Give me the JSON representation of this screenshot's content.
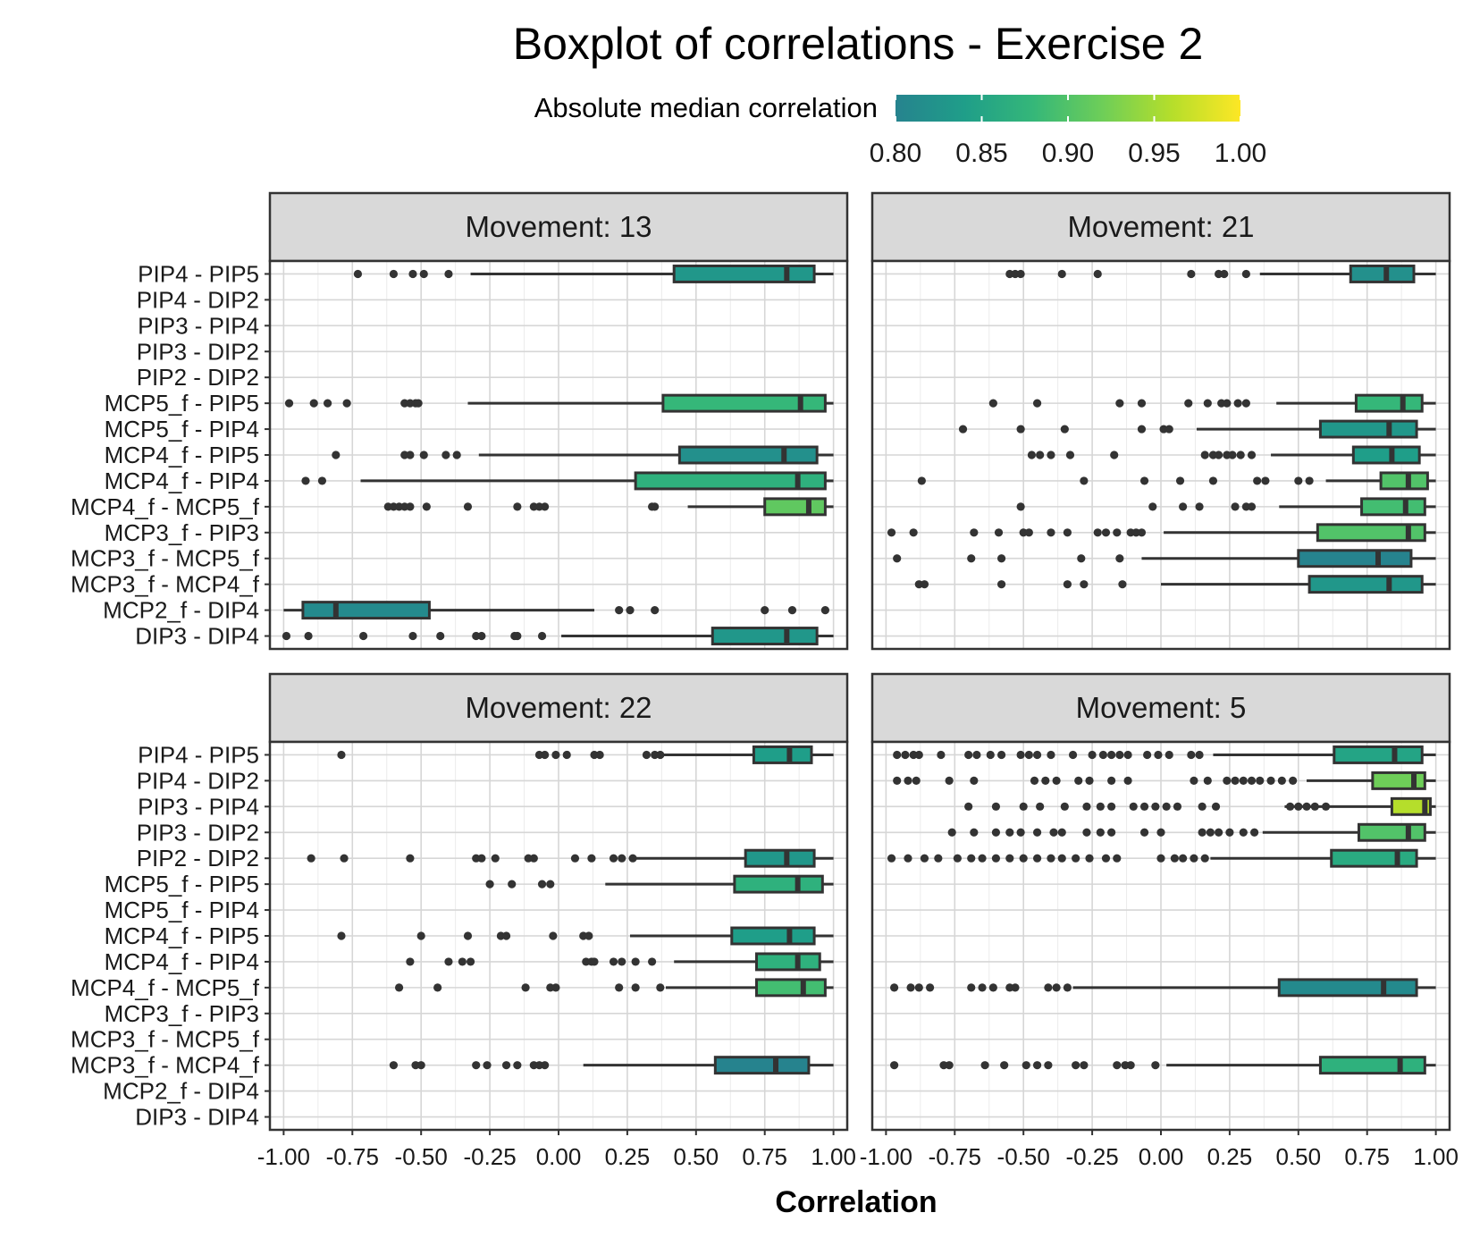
{
  "chart_data": {
    "type": "boxplot",
    "title": "Boxplot of correlations - Exercise 2",
    "xlabel": "Correlation",
    "ylabel": "",
    "xlim": [
      -1.05,
      1.05
    ],
    "x_ticks": [
      "-1.00",
      "-0.75",
      "-0.50",
      "-0.25",
      "0.00",
      "0.25",
      "0.50",
      "0.75",
      "1.00"
    ],
    "grid": true,
    "legend": {
      "title": "Absolute median correlation",
      "position": "top",
      "range": [
        0.8,
        1.0
      ],
      "ticks": [
        "0.80",
        "0.85",
        "0.90",
        "0.95",
        "1.00"
      ],
      "colors": [
        "#26838e",
        "#1f9e89",
        "#35b779",
        "#6ece58",
        "#b5de2b",
        "#fde725"
      ]
    },
    "categories": [
      "PIP4 - PIP5",
      "PIP4 - DIP2",
      "PIP3 - PIP4",
      "PIP3 - DIP2",
      "PIP2 - DIP2",
      "MCP5_f - PIP5",
      "MCP5_f - PIP4",
      "MCP4_f - PIP5",
      "MCP4_f - PIP4",
      "MCP4_f - MCP5_f",
      "MCP3_f - PIP3",
      "MCP3_f - MCP5_f",
      "MCP3_f - MCP4_f",
      "MCP2_f - DIP4",
      "DIP3 - DIP4"
    ],
    "panels": [
      {
        "label": "Movement: 13",
        "boxes": [
          {
            "category": "PIP4 - PIP5",
            "lower_whisker": -0.32,
            "q1": 0.42,
            "median": 0.83,
            "q3": 0.93,
            "upper_whisker": 1.0,
            "outliers": [
              -0.73,
              -0.6,
              -0.53,
              -0.49,
              -0.4
            ]
          },
          {
            "category": "MCP5_f - PIP5",
            "lower_whisker": -0.33,
            "q1": 0.38,
            "median": 0.88,
            "q3": 0.97,
            "upper_whisker": 1.0,
            "outliers": [
              -0.98,
              -0.89,
              -0.84,
              -0.77,
              -0.56,
              -0.54,
              -0.52,
              -0.51
            ]
          },
          {
            "category": "MCP4_f - PIP5",
            "lower_whisker": -0.29,
            "q1": 0.44,
            "median": 0.82,
            "q3": 0.94,
            "upper_whisker": 1.0,
            "outliers": [
              -0.81,
              -0.56,
              -0.54,
              -0.49,
              -0.41,
              -0.37
            ]
          },
          {
            "category": "MCP4_f - PIP4",
            "lower_whisker": -0.72,
            "q1": 0.28,
            "median": 0.87,
            "q3": 0.97,
            "upper_whisker": 1.0,
            "outliers": [
              -0.92,
              -0.86
            ]
          },
          {
            "category": "MCP4_f - MCP5_f",
            "lower_whisker": 0.47,
            "q1": 0.75,
            "median": 0.91,
            "q3": 0.97,
            "upper_whisker": 1.0,
            "outliers": [
              -0.62,
              -0.6,
              -0.58,
              -0.56,
              -0.54,
              -0.48,
              -0.33,
              -0.15,
              -0.09,
              -0.07,
              -0.05,
              0.34,
              0.35
            ]
          },
          {
            "category": "MCP2_f - DIP4",
            "lower_whisker": -1.0,
            "q1": -0.93,
            "median": -0.81,
            "q3": -0.47,
            "upper_whisker": 0.13,
            "outliers": [
              0.22,
              0.26,
              0.35,
              0.75,
              0.85,
              0.97
            ]
          },
          {
            "category": "DIP3 - DIP4",
            "lower_whisker": 0.01,
            "q1": 0.56,
            "median": 0.83,
            "q3": 0.94,
            "upper_whisker": 1.0,
            "outliers": [
              -0.99,
              -0.91,
              -0.71,
              -0.53,
              -0.43,
              -0.3,
              -0.28,
              -0.16,
              -0.15,
              -0.06
            ]
          }
        ]
      },
      {
        "label": "Movement: 21",
        "boxes": [
          {
            "category": "PIP4 - PIP5",
            "lower_whisker": 0.36,
            "q1": 0.69,
            "median": 0.82,
            "q3": 0.92,
            "upper_whisker": 1.0,
            "outliers": [
              -0.55,
              -0.53,
              -0.51,
              -0.36,
              -0.23,
              0.11,
              0.21,
              0.23,
              0.31
            ]
          },
          {
            "category": "MCP5_f - PIP5",
            "lower_whisker": 0.42,
            "q1": 0.71,
            "median": 0.88,
            "q3": 0.95,
            "upper_whisker": 1.0,
            "outliers": [
              -0.61,
              -0.45,
              -0.15,
              -0.07,
              0.1,
              0.17,
              0.22,
              0.24,
              0.28,
              0.31
            ]
          },
          {
            "category": "MCP5_f - PIP4",
            "lower_whisker": 0.13,
            "q1": 0.58,
            "median": 0.83,
            "q3": 0.93,
            "upper_whisker": 1.0,
            "outliers": [
              -0.72,
              -0.51,
              -0.35,
              -0.07,
              0.01,
              0.03
            ]
          },
          {
            "category": "MCP4_f - PIP5",
            "lower_whisker": 0.4,
            "q1": 0.7,
            "median": 0.84,
            "q3": 0.94,
            "upper_whisker": 1.0,
            "outliers": [
              -0.47,
              -0.44,
              -0.4,
              -0.33,
              -0.17,
              0.16,
              0.19,
              0.21,
              0.24,
              0.26,
              0.29,
              0.33
            ]
          },
          {
            "category": "MCP4_f - PIP4",
            "lower_whisker": 0.6,
            "q1": 0.8,
            "median": 0.9,
            "q3": 0.97,
            "upper_whisker": 1.0,
            "outliers": [
              -0.87,
              -0.28,
              -0.06,
              0.07,
              0.19,
              0.35,
              0.38,
              0.5,
              0.54
            ]
          },
          {
            "category": "MCP4_f - MCP5_f",
            "lower_whisker": 0.43,
            "q1": 0.73,
            "median": 0.89,
            "q3": 0.96,
            "upper_whisker": 1.0,
            "outliers": [
              -0.51,
              -0.03,
              0.08,
              0.14,
              0.27,
              0.31,
              0.33
            ]
          },
          {
            "category": "MCP3_f - PIP3",
            "lower_whisker": 0.01,
            "q1": 0.57,
            "median": 0.9,
            "q3": 0.96,
            "upper_whisker": 1.0,
            "outliers": [
              -0.98,
              -0.9,
              -0.68,
              -0.59,
              -0.5,
              -0.48,
              -0.4,
              -0.34,
              -0.23,
              -0.2,
              -0.16,
              -0.11,
              -0.09,
              -0.07
            ]
          },
          {
            "category": "MCP3_f - MCP5_f",
            "lower_whisker": -0.07,
            "q1": 0.5,
            "median": 0.79,
            "q3": 0.91,
            "upper_whisker": 1.0,
            "outliers": [
              -0.96,
              -0.69,
              -0.58,
              -0.29,
              -0.15
            ]
          },
          {
            "category": "MCP3_f - MCP4_f",
            "lower_whisker": 0.0,
            "q1": 0.54,
            "median": 0.83,
            "q3": 0.95,
            "upper_whisker": 1.0,
            "outliers": [
              -0.88,
              -0.86,
              -0.58,
              -0.34,
              -0.28,
              -0.14
            ]
          }
        ]
      },
      {
        "label": "Movement: 22",
        "boxes": [
          {
            "category": "PIP4 - PIP5",
            "lower_whisker": 0.38,
            "q1": 0.71,
            "median": 0.84,
            "q3": 0.92,
            "upper_whisker": 1.0,
            "outliers": [
              -0.79,
              -0.07,
              -0.05,
              -0.01,
              0.03,
              0.13,
              0.15,
              0.32,
              0.35,
              0.37
            ]
          },
          {
            "category": "PIP2 - DIP2",
            "lower_whisker": 0.28,
            "q1": 0.68,
            "median": 0.83,
            "q3": 0.93,
            "upper_whisker": 1.0,
            "outliers": [
              -0.9,
              -0.78,
              -0.54,
              -0.3,
              -0.28,
              -0.23,
              -0.11,
              -0.09,
              0.06,
              0.12,
              0.2,
              0.23,
              0.27
            ]
          },
          {
            "category": "MCP5_f - PIP5",
            "lower_whisker": 0.17,
            "q1": 0.64,
            "median": 0.87,
            "q3": 0.96,
            "upper_whisker": 1.0,
            "outliers": [
              -0.25,
              -0.17,
              -0.06,
              -0.03
            ]
          },
          {
            "category": "MCP4_f - PIP5",
            "lower_whisker": 0.26,
            "q1": 0.63,
            "median": 0.84,
            "q3": 0.93,
            "upper_whisker": 1.0,
            "outliers": [
              -0.79,
              -0.5,
              -0.33,
              -0.21,
              -0.19,
              -0.02,
              0.09,
              0.11
            ]
          },
          {
            "category": "MCP4_f - PIP4",
            "lower_whisker": 0.42,
            "q1": 0.72,
            "median": 0.87,
            "q3": 0.95,
            "upper_whisker": 1.0,
            "outliers": [
              -0.54,
              -0.4,
              -0.35,
              -0.32,
              0.1,
              0.12,
              0.13,
              0.2,
              0.23,
              0.28,
              0.34
            ]
          },
          {
            "category": "MCP4_f - MCP5_f",
            "lower_whisker": 0.39,
            "q1": 0.72,
            "median": 0.89,
            "q3": 0.97,
            "upper_whisker": 1.0,
            "outliers": [
              -0.58,
              -0.44,
              -0.12,
              -0.03,
              -0.01,
              0.22,
              0.28,
              0.37
            ]
          },
          {
            "category": "MCP3_f - MCP4_f",
            "lower_whisker": 0.09,
            "q1": 0.57,
            "median": 0.79,
            "q3": 0.91,
            "upper_whisker": 1.0,
            "outliers": [
              -0.6,
              -0.52,
              -0.5,
              -0.3,
              -0.26,
              -0.19,
              -0.15,
              -0.09,
              -0.07,
              -0.05
            ]
          }
        ]
      },
      {
        "label": "Movement: 5",
        "boxes": [
          {
            "category": "PIP4 - PIP5",
            "lower_whisker": 0.19,
            "q1": 0.63,
            "median": 0.85,
            "q3": 0.95,
            "upper_whisker": 1.0,
            "outliers": [
              -0.96,
              -0.93,
              -0.9,
              -0.88,
              -0.8,
              -0.7,
              -0.67,
              -0.62,
              -0.58,
              -0.51,
              -0.48,
              -0.45,
              -0.4,
              -0.32,
              -0.25,
              -0.21,
              -0.18,
              -0.15,
              -0.12,
              -0.05,
              -0.01,
              0.03,
              0.11,
              0.14
            ]
          },
          {
            "category": "PIP4 - DIP2",
            "lower_whisker": 0.53,
            "q1": 0.77,
            "median": 0.92,
            "q3": 0.96,
            "upper_whisker": 1.0,
            "outliers": [
              -0.96,
              -0.92,
              -0.89,
              -0.77,
              -0.68,
              -0.46,
              -0.42,
              -0.38,
              -0.3,
              -0.26,
              -0.18,
              -0.12,
              0.12,
              0.17,
              0.24,
              0.27,
              0.3,
              0.33,
              0.36,
              0.4,
              0.44,
              0.48
            ]
          },
          {
            "category": "PIP3 - PIP4",
            "lower_whisker": 0.45,
            "q1": 0.84,
            "median": 0.96,
            "q3": 0.98,
            "upper_whisker": 1.0,
            "outliers": [
              -0.7,
              -0.6,
              -0.5,
              -0.44,
              -0.35,
              -0.27,
              -0.22,
              -0.18,
              -0.1,
              -0.06,
              -0.02,
              0.02,
              0.06,
              0.15,
              0.2,
              0.47,
              0.5,
              0.53,
              0.56,
              0.6
            ]
          },
          {
            "category": "PIP3 - DIP2",
            "lower_whisker": 0.37,
            "q1": 0.72,
            "median": 0.9,
            "q3": 0.96,
            "upper_whisker": 1.0,
            "outliers": [
              -0.76,
              -0.68,
              -0.6,
              -0.55,
              -0.51,
              -0.45,
              -0.39,
              -0.36,
              -0.27,
              -0.22,
              -0.18,
              -0.06,
              0.0,
              0.15,
              0.18,
              0.21,
              0.25,
              0.3,
              0.34
            ]
          },
          {
            "category": "PIP2 - DIP2",
            "lower_whisker": 0.18,
            "q1": 0.62,
            "median": 0.86,
            "q3": 0.93,
            "upper_whisker": 1.0,
            "outliers": [
              -0.98,
              -0.92,
              -0.86,
              -0.81,
              -0.74,
              -0.69,
              -0.65,
              -0.6,
              -0.55,
              -0.5,
              -0.45,
              -0.4,
              -0.36,
              -0.31,
              -0.26,
              -0.2,
              -0.16,
              0.0,
              0.05,
              0.08,
              0.12,
              0.16
            ]
          },
          {
            "category": "MCP4_f - MCP5_f",
            "lower_whisker": -0.32,
            "q1": 0.43,
            "median": 0.81,
            "q3": 0.93,
            "upper_whisker": 1.0,
            "outliers": [
              -0.97,
              -0.91,
              -0.88,
              -0.84,
              -0.69,
              -0.65,
              -0.61,
              -0.55,
              -0.53,
              -0.41,
              -0.38,
              -0.34
            ]
          },
          {
            "category": "MCP3_f - MCP4_f",
            "lower_whisker": 0.02,
            "q1": 0.58,
            "median": 0.87,
            "q3": 0.96,
            "upper_whisker": 1.0,
            "outliers": [
              -0.97,
              -0.79,
              -0.77,
              -0.64,
              -0.57,
              -0.49,
              -0.45,
              -0.41,
              -0.31,
              -0.28,
              -0.16,
              -0.13,
              -0.11,
              -0.02
            ]
          }
        ]
      }
    ]
  }
}
